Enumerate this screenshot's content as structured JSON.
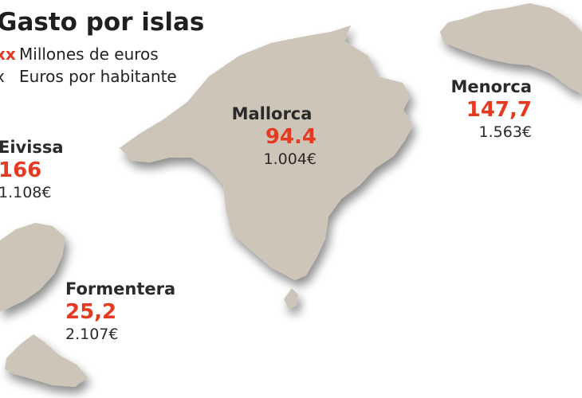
{
  "title": "Gasto por islas",
  "legend": {
    "millones": {
      "swatch": "xx",
      "label": "Millones de euros"
    },
    "habitante": {
      "swatch": "x",
      "label": "Euros por habitante"
    }
  },
  "islands": {
    "mallorca": {
      "name": "Mallorca",
      "millones": "94.4",
      "per_capita": "1.004€"
    },
    "menorca": {
      "name": "Menorca",
      "millones": "147,7",
      "per_capita": "1.563€"
    },
    "eivissa": {
      "name": "Eivissa",
      "millones": "166",
      "per_capita": "1.108€"
    },
    "formentera": {
      "name": "Formentera",
      "millones": "25,2",
      "per_capita": "2.107€"
    }
  },
  "colors": {
    "island_fill": "#cdc5b7",
    "accent": "#e53a22",
    "text": "#222222"
  }
}
